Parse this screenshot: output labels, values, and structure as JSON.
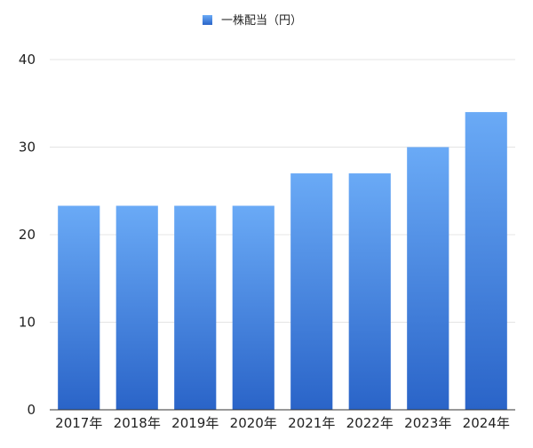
{
  "chart_data": {
    "type": "bar",
    "title": "",
    "xlabel": "",
    "ylabel": "",
    "categories": [
      "2017年",
      "2018年",
      "2019年",
      "2020年",
      "2021年",
      "2022年",
      "2023年",
      "2024年"
    ],
    "series": [
      {
        "name": "一株配当（円）",
        "values": [
          23.3,
          23.3,
          23.3,
          23.3,
          27,
          27,
          30,
          34
        ]
      }
    ],
    "ylim": [
      0,
      40
    ],
    "yticks": [
      0,
      10,
      20,
      30,
      40
    ],
    "grid": true,
    "legend_position": "top-center",
    "colors": {
      "bar_top": "#6aaaf6",
      "bar_bottom": "#2a64c8"
    }
  }
}
